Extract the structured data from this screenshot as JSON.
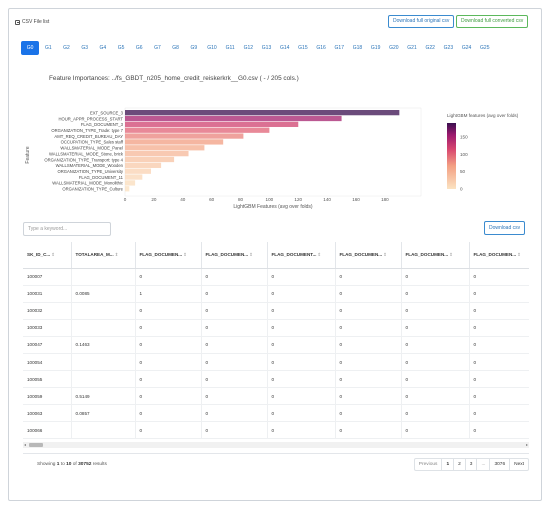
{
  "header": {
    "csv_file_list": "CSV File list",
    "download_original": "Download full original csv",
    "download_converted": "Download full converted csv"
  },
  "tabs": [
    "G0",
    "G1",
    "G2",
    "G3",
    "G4",
    "G5",
    "G6",
    "G7",
    "G8",
    "G9",
    "G10",
    "G11",
    "G12",
    "G13",
    "G14",
    "G15",
    "G16",
    "G17",
    "G18",
    "G19",
    "G20",
    "G21",
    "G22",
    "G23",
    "G24",
    "G25"
  ],
  "active_tab": "G0",
  "plot_title": "Feature Importances: ../fs_GBDT_n205_home_credit_reiskerkrk__G0.csv ( - / 205 cols.)",
  "chart_data": {
    "type": "bar",
    "orientation": "horizontal",
    "ylabel": "Feature",
    "xlabel": "LightGBM Features (avg over folds)",
    "colorbar_label": "LightGBM features (avg over folds)",
    "categories": [
      "EXT_SOURCE_3",
      "HOUR_APPR_PROCESS_START",
      "FLAG_DOCUMENT_3",
      "ORGANIZATION_TYPE_Trade: type 7",
      "AMT_REQ_CREDIT_BUREAU_DAY",
      "OCCUPATION_TYPE_Sales staff",
      "WALLSMATERIAL_MODE_Panel",
      "WALLSMATERIAL_MODE_Stone, brick",
      "ORGANIZATION_TYPE_Transport: type 4",
      "WALLSMATERIAL_MODE_Wooden",
      "ORGANIZATION_TYPE_University",
      "FLAG_DOCUMENT_11",
      "WALLSMATERIAL_MODE_Monolithic",
      "ORGANIZATION_TYPE_Culture"
    ],
    "values": [
      190,
      150,
      120,
      100,
      82,
      68,
      55,
      44,
      34,
      25,
      18,
      12,
      7,
      3
    ],
    "xlim": [
      0,
      205
    ],
    "xticks": [
      0,
      20,
      40,
      60,
      80,
      100,
      120,
      140,
      160,
      180
    ],
    "colorbar_ticks": [
      150,
      100,
      50,
      0
    ],
    "colorbar_range": [
      0,
      190
    ]
  },
  "search": {
    "placeholder": "Type a keyword..."
  },
  "download_csv": "Download csv",
  "table": {
    "columns": [
      "SK_ID_C...",
      "TOTALAREA_M...",
      "FLAG_DOCUMEN...",
      "FLAG_DOCUMEN...",
      "FLAG_DOCUMENT...",
      "FLAG_DOCUMEN...",
      "FLAG_DOCUMEN...",
      "FLAG_DOCUMEN..."
    ],
    "rows": [
      [
        "100007",
        "",
        "0",
        "0",
        "0",
        "0",
        "0",
        "0"
      ],
      [
        "100031",
        "0.0085",
        "1",
        "0",
        "0",
        "0",
        "0",
        "0"
      ],
      [
        "100032",
        "",
        "0",
        "0",
        "0",
        "0",
        "0",
        "0"
      ],
      [
        "100033",
        "",
        "0",
        "0",
        "0",
        "0",
        "0",
        "0"
      ],
      [
        "100047",
        "0.1463",
        "0",
        "0",
        "0",
        "0",
        "0",
        "0"
      ],
      [
        "100054",
        "",
        "0",
        "0",
        "0",
        "0",
        "0",
        "0"
      ],
      [
        "100055",
        "",
        "0",
        "0",
        "0",
        "0",
        "0",
        "0"
      ],
      [
        "100059",
        "0.5149",
        "0",
        "0",
        "0",
        "0",
        "0",
        "0"
      ],
      [
        "100063",
        "0.0857",
        "0",
        "0",
        "0",
        "0",
        "0",
        "0"
      ],
      [
        "100066",
        "",
        "0",
        "0",
        "0",
        "0",
        "0",
        "0"
      ]
    ]
  },
  "pagination": {
    "showing_prefix": "Showing ",
    "from": "1",
    "to_word": " to ",
    "to": "10",
    "of_word": " of ",
    "total": "30752",
    "suffix": " results",
    "pages": [
      "Previous",
      "1",
      "2",
      "3",
      "...",
      "3076",
      "Next"
    ]
  },
  "colors": {
    "accent": "#1a73e8",
    "bar_low": "#fbe3c2",
    "bar_high": "#3a0f4f",
    "success": "#5cb85c"
  }
}
